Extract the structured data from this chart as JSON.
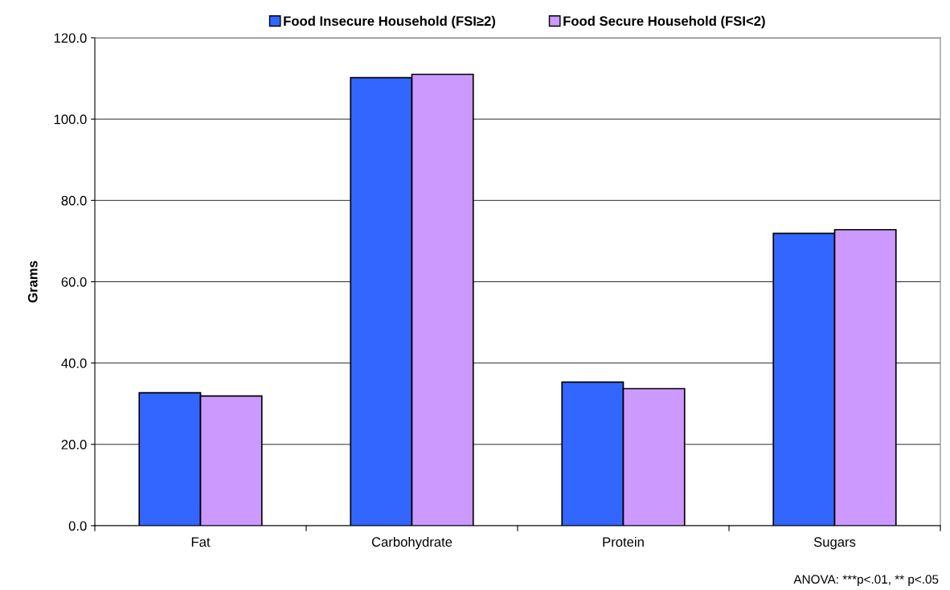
{
  "chart_data": {
    "type": "bar",
    "ylabel": "Grams",
    "categories": [
      "Fat",
      "Carbohydrate",
      "Protein",
      "Sugars"
    ],
    "series": [
      {
        "name": "Food Insecure Household (FSI≥2)",
        "color": "#3366ff",
        "values": [
          32.7,
          110.2,
          35.3,
          71.9
        ]
      },
      {
        "name": "Food Secure Household (FSI<2)",
        "color": "#cc99ff",
        "values": [
          31.9,
          111.0,
          33.7,
          72.8
        ]
      }
    ],
    "ylim": [
      0,
      120
    ],
    "yticks": [
      {
        "value": 0,
        "label": "0.0"
      },
      {
        "value": 20,
        "label": "20.0"
      },
      {
        "value": 40,
        "label": "40.0"
      },
      {
        "value": 60,
        "label": "60.0"
      },
      {
        "value": 80,
        "label": "80.0"
      },
      {
        "value": 100,
        "label": "100.0"
      },
      {
        "value": 120,
        "label": "120.0"
      }
    ],
    "grid": "y",
    "legend": "top",
    "annotations": [
      "ANOVA: ***p<.01, ** p<.05"
    ]
  }
}
